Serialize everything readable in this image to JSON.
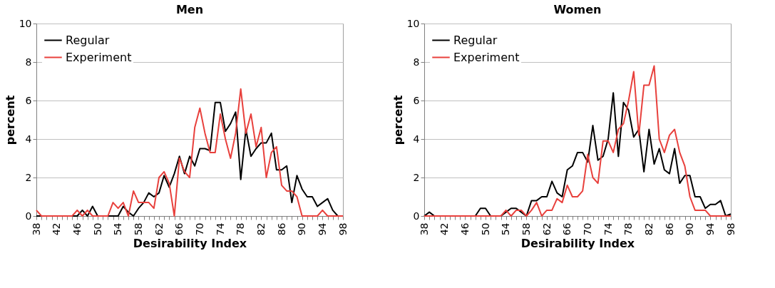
{
  "chart_data": [
    {
      "type": "line",
      "title": "Men",
      "xlabel": "Desirability Index",
      "ylabel": "percent",
      "xlim": [
        38,
        98
      ],
      "xticks": [
        38,
        {
          "value": 39,
          "label": null
        },
        {
          "value": 40,
          "label": null
        },
        {
          "value": 41,
          "label": null
        },
        42,
        {
          "value": 43,
          "label": null
        },
        {
          "value": 44,
          "label": null
        },
        {
          "value": 45,
          "label": null
        },
        46,
        {
          "value": 47,
          "label": null
        },
        {
          "value": 48,
          "label": null
        },
        {
          "value": 49,
          "label": null
        },
        50,
        {
          "value": 51,
          "label": null
        },
        {
          "value": 52,
          "label": null
        },
        {
          "value": 53,
          "label": null
        },
        54,
        {
          "value": 55,
          "label": null
        },
        {
          "value": 56,
          "label": null
        },
        {
          "value": 57,
          "label": null
        },
        58,
        {
          "value": 59,
          "label": null
        },
        {
          "value": 60,
          "label": null
        },
        {
          "value": 61,
          "label": null
        },
        62,
        {
          "value": 63,
          "label": null
        },
        {
          "value": 64,
          "label": null
        },
        {
          "value": 65,
          "label": null
        },
        66,
        {
          "value": 67,
          "label": null
        },
        {
          "value": 68,
          "label": null
        },
        {
          "value": 69,
          "label": null
        },
        70,
        {
          "value": 71,
          "label": null
        },
        {
          "value": 72,
          "label": null
        },
        {
          "value": 73,
          "label": null
        },
        74,
        {
          "value": 75,
          "label": null
        },
        {
          "value": 76,
          "label": null
        },
        {
          "value": 77,
          "label": null
        },
        78,
        {
          "value": 79,
          "label": null
        },
        {
          "value": 80,
          "label": null
        },
        {
          "value": 81,
          "label": null
        },
        82,
        {
          "value": 83,
          "label": null
        },
        {
          "value": 84,
          "label": null
        },
        {
          "value": 85,
          "label": null
        },
        86,
        {
          "value": 87,
          "label": null
        },
        {
          "value": 88,
          "label": null
        },
        {
          "value": 89,
          "label": null
        },
        90,
        {
          "value": 91,
          "label": null
        },
        {
          "value": 92,
          "label": null
        },
        {
          "value": 93,
          "label": null
        },
        94,
        {
          "value": 95,
          "label": null
        },
        {
          "value": 96,
          "label": null
        },
        {
          "value": 97,
          "label": null
        },
        98
      ],
      "ylim": [
        0,
        10
      ],
      "yticks": [
        0,
        2,
        4,
        6,
        8,
        10
      ],
      "grid": "y",
      "legend": "top left",
      "marker": "none",
      "line_style": "solid",
      "x": [
        38,
        39,
        40,
        41,
        42,
        43,
        44,
        45,
        46,
        47,
        48,
        49,
        50,
        51,
        52,
        53,
        54,
        55,
        56,
        57,
        58,
        59,
        60,
        61,
        62,
        63,
        64,
        65,
        66,
        67,
        68,
        69,
        70,
        71,
        72,
        73,
        74,
        75,
        76,
        77,
        78,
        79,
        80,
        81,
        82,
        83,
        84,
        85,
        86,
        87,
        88,
        89,
        90,
        91,
        92,
        93,
        94,
        95,
        96,
        97,
        98
      ],
      "series": [
        {
          "name": "Regular",
          "color": "#000000",
          "values": [
            0,
            0,
            0,
            0,
            0,
            0,
            0,
            0,
            0,
            0.3,
            0,
            0.5,
            0,
            0,
            0,
            0,
            0,
            0.5,
            0.2,
            0,
            0.4,
            0.7,
            1.2,
            1.0,
            1.2,
            2.1,
            1.5,
            2.2,
            3.1,
            2.2,
            3.1,
            2.6,
            3.5,
            3.5,
            3.4,
            5.9,
            5.9,
            4.4,
            4.8,
            5.4,
            1.9,
            4.5,
            3.1,
            3.5,
            3.8,
            3.8,
            4.3,
            2.4,
            2.4,
            2.6,
            0.7,
            2.1,
            1.4,
            1.0,
            1.0,
            0.5,
            0.7,
            0.9,
            0.3,
            0,
            0
          ]
        },
        {
          "name": "Experiment",
          "color": "#e8403c",
          "values": [
            0.3,
            0,
            0,
            0,
            0,
            0,
            0,
            0,
            0.3,
            0,
            0.3,
            0,
            0,
            0,
            0,
            0.7,
            0.4,
            0.7,
            0,
            1.3,
            0.7,
            0.7,
            0.7,
            0.4,
            2.0,
            2.3,
            1.7,
            0,
            3.0,
            2.3,
            2.0,
            4.6,
            5.6,
            4.3,
            3.3,
            3.3,
            5.3,
            4.0,
            3.0,
            4.3,
            6.6,
            4.3,
            5.3,
            3.6,
            4.6,
            2.0,
            3.3,
            3.6,
            1.6,
            1.3,
            1.3,
            1.0,
            0,
            0,
            0,
            0,
            0.3,
            0,
            0,
            0,
            0
          ]
        }
      ]
    },
    {
      "type": "line",
      "title": "Women",
      "xlabel": "Desirability Index",
      "ylabel": "percent",
      "xlim": [
        38,
        98
      ],
      "xticks": [
        38,
        {
          "value": 39,
          "label": null
        },
        {
          "value": 40,
          "label": null
        },
        {
          "value": 41,
          "label": null
        },
        42,
        {
          "value": 43,
          "label": null
        },
        {
          "value": 44,
          "label": null
        },
        {
          "value": 45,
          "label": null
        },
        46,
        {
          "value": 47,
          "label": null
        },
        {
          "value": 48,
          "label": null
        },
        {
          "value": 49,
          "label": null
        },
        50,
        {
          "value": 51,
          "label": null
        },
        {
          "value": 52,
          "label": null
        },
        {
          "value": 53,
          "label": null
        },
        54,
        {
          "value": 55,
          "label": null
        },
        {
          "value": 56,
          "label": null
        },
        {
          "value": 57,
          "label": null
        },
        58,
        {
          "value": 59,
          "label": null
        },
        {
          "value": 60,
          "label": null
        },
        {
          "value": 61,
          "label": null
        },
        62,
        {
          "value": 63,
          "label": null
        },
        {
          "value": 64,
          "label": null
        },
        {
          "value": 65,
          "label": null
        },
        66,
        {
          "value": 67,
          "label": null
        },
        {
          "value": 68,
          "label": null
        },
        {
          "value": 69,
          "label": null
        },
        70,
        {
          "value": 71,
          "label": null
        },
        {
          "value": 72,
          "label": null
        },
        {
          "value": 73,
          "label": null
        },
        74,
        {
          "value": 75,
          "label": null
        },
        {
          "value": 76,
          "label": null
        },
        {
          "value": 77,
          "label": null
        },
        78,
        {
          "value": 79,
          "label": null
        },
        {
          "value": 80,
          "label": null
        },
        {
          "value": 81,
          "label": null
        },
        82,
        {
          "value": 83,
          "label": null
        },
        {
          "value": 84,
          "label": null
        },
        {
          "value": 85,
          "label": null
        },
        86,
        {
          "value": 87,
          "label": null
        },
        {
          "value": 88,
          "label": null
        },
        {
          "value": 89,
          "label": null
        },
        90,
        {
          "value": 91,
          "label": null
        },
        {
          "value": 92,
          "label": null
        },
        {
          "value": 93,
          "label": null
        },
        94,
        {
          "value": 95,
          "label": null
        },
        {
          "value": 96,
          "label": null
        },
        {
          "value": 97,
          "label": null
        },
        98
      ],
      "ylim": [
        0,
        10
      ],
      "yticks": [
        0,
        2,
        4,
        6,
        8,
        10
      ],
      "grid": "y",
      "legend": "top left",
      "marker": "none",
      "line_style": "solid",
      "x": [
        38,
        39,
        40,
        41,
        42,
        43,
        44,
        45,
        46,
        47,
        48,
        49,
        50,
        51,
        52,
        53,
        54,
        55,
        56,
        57,
        58,
        59,
        60,
        61,
        62,
        63,
        64,
        65,
        66,
        67,
        68,
        69,
        70,
        71,
        72,
        73,
        74,
        75,
        76,
        77,
        78,
        79,
        80,
        81,
        82,
        83,
        84,
        85,
        86,
        87,
        88,
        89,
        90,
        91,
        92,
        93,
        94,
        95,
        96,
        97,
        98
      ],
      "series": [
        {
          "name": "Regular",
          "color": "#000000",
          "values": [
            0,
            0.2,
            0,
            0,
            0,
            0,
            0,
            0,
            0,
            0,
            0,
            0.4,
            0.4,
            0,
            0,
            0,
            0.2,
            0.4,
            0.4,
            0.2,
            0,
            0.8,
            0.8,
            1.0,
            1.0,
            1.8,
            1.2,
            1.0,
            2.4,
            2.6,
            3.3,
            3.3,
            2.8,
            4.7,
            2.9,
            3.1,
            4.0,
            6.4,
            3.1,
            5.9,
            5.5,
            4.1,
            4.5,
            2.3,
            4.5,
            2.7,
            3.5,
            2.4,
            2.2,
            3.5,
            1.7,
            2.1,
            2.1,
            1.0,
            1.0,
            0.4,
            0.6,
            0.6,
            0.8,
            0,
            0.1
          ]
        },
        {
          "name": "Experiment",
          "color": "#e8403c",
          "values": [
            0,
            0,
            0,
            0,
            0,
            0,
            0,
            0,
            0,
            0,
            0,
            0,
            0,
            0,
            0,
            0,
            0.3,
            0,
            0.3,
            0.3,
            0,
            0.3,
            0.7,
            0,
            0.3,
            0.3,
            0.9,
            0.7,
            1.6,
            1.0,
            1.0,
            1.3,
            3.2,
            2.0,
            1.7,
            3.9,
            3.9,
            3.3,
            4.5,
            4.8,
            6.0,
            7.5,
            4.2,
            6.8,
            6.8,
            7.8,
            4.0,
            3.3,
            4.2,
            4.5,
            3.3,
            2.6,
            1.0,
            0.3,
            0.3,
            0.3,
            0,
            0,
            0,
            0,
            0
          ]
        }
      ]
    }
  ]
}
